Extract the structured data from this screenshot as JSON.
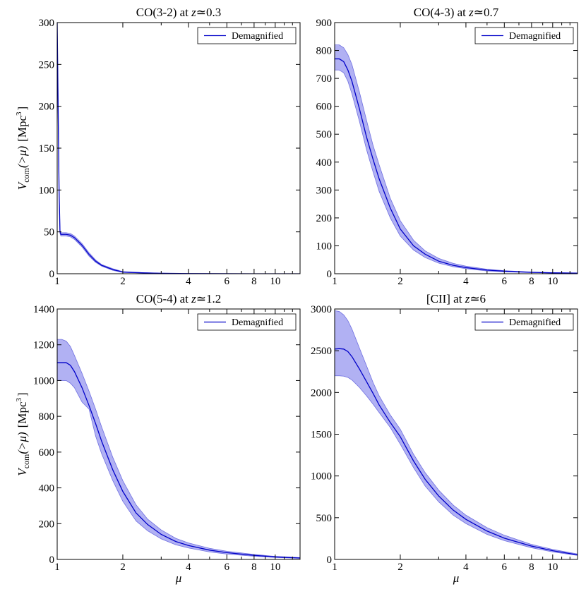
{
  "colors": {
    "line": "#0000c8",
    "band": "#9e9ef0",
    "band_edge": "#7070e0",
    "axis": "#000000"
  },
  "labels": {
    "ylabel_main": "V",
    "ylabel_sub": "com",
    "ylabel_arg": "(>μ)",
    "ylabel_unit": "[Mpc",
    "ylabel_unit_sup": "3",
    "ylabel_unit_close": "]",
    "xlabel": "μ"
  },
  "chart_data": [
    {
      "type": "area",
      "title_pre": "CO(3-2) at ",
      "title_var": "z",
      "title_post": "≃0.3",
      "legend": "Demagnified",
      "legend_position": "top-right",
      "xscale": "log",
      "xlim": [
        1,
        13
      ],
      "xticks": [
        1,
        2,
        4,
        6,
        8,
        10
      ],
      "xlabel": "",
      "ylim": [
        0,
        300
      ],
      "yticks": [
        0,
        50,
        100,
        150,
        200,
        250,
        300
      ],
      "ylabel": true,
      "x": [
        1.0,
        1.01,
        1.02,
        1.03,
        1.04,
        1.06,
        1.1,
        1.15,
        1.2,
        1.3,
        1.4,
        1.5,
        1.6,
        1.8,
        2.0,
        2.5,
        3.0,
        4.0,
        6.0,
        8.0,
        10.0,
        13.0
      ],
      "values": [
        300,
        200,
        100,
        50,
        47,
        47,
        47,
        46,
        43,
        34,
        23,
        15,
        10,
        5,
        2,
        1,
        0.5,
        0.2,
        0.1,
        0,
        0,
        0
      ],
      "upper": [
        300,
        205,
        103,
        52,
        49,
        49,
        49,
        48,
        45,
        36,
        25,
        16.5,
        11,
        6,
        2.5,
        1.2,
        0.6,
        0.3,
        0.1,
        0,
        0,
        0
      ],
      "lower": [
        300,
        195,
        97,
        48,
        45,
        45,
        45,
        44,
        41,
        32,
        21,
        13.5,
        9,
        4,
        1.5,
        0.8,
        0.4,
        0.1,
        0.05,
        0,
        0,
        0
      ]
    },
    {
      "type": "area",
      "title_pre": "CO(4-3) at ",
      "title_var": "z",
      "title_post": "≃0.7",
      "legend": "Demagnified",
      "legend_position": "top-right",
      "xscale": "log",
      "xlim": [
        1,
        13
      ],
      "xticks": [
        1,
        2,
        4,
        6,
        8,
        10
      ],
      "xlabel": "",
      "ylim": [
        0,
        900
      ],
      "yticks": [
        0,
        100,
        200,
        300,
        400,
        500,
        600,
        700,
        800,
        900
      ],
      "ylabel": false,
      "x": [
        1.0,
        1.05,
        1.1,
        1.15,
        1.2,
        1.3,
        1.4,
        1.5,
        1.6,
        1.8,
        2.0,
        2.3,
        2.6,
        3.0,
        3.5,
        4.0,
        5.0,
        6.0,
        8.0,
        10.0,
        13.0
      ],
      "values": [
        770,
        770,
        760,
        730,
        690,
        590,
        490,
        410,
        340,
        235,
        160,
        100,
        70,
        45,
        30,
        22,
        13,
        9,
        5,
        3,
        2
      ],
      "upper": [
        820,
        820,
        810,
        785,
        750,
        650,
        550,
        460,
        390,
        270,
        190,
        120,
        82,
        55,
        37,
        27,
        16,
        11,
        6,
        4,
        2.5
      ],
      "lower": [
        730,
        730,
        720,
        690,
        645,
        545,
        445,
        365,
        295,
        200,
        135,
        85,
        58,
        38,
        25,
        18,
        10,
        7,
        4,
        2.5,
        1.5
      ]
    },
    {
      "type": "area",
      "title_pre": "CO(5-4) at ",
      "title_var": "z",
      "title_post": "≃1.2",
      "legend": "Demagnified",
      "legend_position": "top-right",
      "xscale": "log",
      "xlim": [
        1,
        13
      ],
      "xticks": [
        1,
        2,
        4,
        6,
        8,
        10
      ],
      "xlabel": "μ",
      "ylim": [
        0,
        1400
      ],
      "yticks": [
        0,
        200,
        400,
        600,
        800,
        1000,
        1200,
        1400
      ],
      "ylabel": true,
      "x": [
        1.0,
        1.05,
        1.1,
        1.15,
        1.2,
        1.3,
        1.4,
        1.5,
        1.6,
        1.8,
        2.0,
        2.3,
        2.6,
        3.0,
        3.5,
        4.0,
        5.0,
        6.0,
        8.0,
        10.0,
        13.0
      ],
      "values": [
        1100,
        1100,
        1100,
        1085,
        1050,
        960,
        860,
        760,
        660,
        500,
        380,
        260,
        195,
        140,
        100,
        78,
        52,
        38,
        23,
        14,
        8
      ],
      "upper": [
        1230,
        1230,
        1220,
        1190,
        1140,
        1040,
        940,
        840,
        740,
        570,
        440,
        305,
        225,
        165,
        118,
        92,
        62,
        46,
        28,
        17,
        10
      ],
      "lower": [
        1000,
        1000,
        1000,
        985,
        960,
        880,
        840,
        690,
        590,
        440,
        325,
        215,
        160,
        115,
        82,
        64,
        42,
        30,
        18,
        11,
        6
      ]
    },
    {
      "type": "area",
      "title_pre": "[CII] at ",
      "title_var": "z",
      "title_post": "≃6",
      "legend": "Demagnified",
      "legend_position": "top-right",
      "xscale": "log",
      "xlim": [
        1,
        13
      ],
      "xticks": [
        1,
        2,
        4,
        6,
        8,
        10
      ],
      "xlabel": "μ",
      "ylim": [
        0,
        3000
      ],
      "yticks": [
        0,
        500,
        1000,
        1500,
        2000,
        2500,
        3000
      ],
      "ylabel": false,
      "x": [
        1.0,
        1.05,
        1.1,
        1.15,
        1.2,
        1.3,
        1.4,
        1.5,
        1.6,
        1.8,
        2.0,
        2.3,
        2.6,
        3.0,
        3.5,
        4.0,
        5.0,
        6.0,
        8.0,
        10.0,
        13.0
      ],
      "values": [
        2520,
        2525,
        2520,
        2490,
        2430,
        2280,
        2130,
        1990,
        1850,
        1640,
        1470,
        1180,
        960,
        760,
        590,
        480,
        340,
        255,
        160,
        105,
        55
      ],
      "upper": [
        2980,
        2970,
        2930,
        2860,
        2760,
        2530,
        2320,
        2120,
        1960,
        1730,
        1560,
        1260,
        1040,
        830,
        650,
        530,
        380,
        290,
        180,
        120,
        65
      ],
      "lower": [
        2200,
        2200,
        2195,
        2180,
        2150,
        2060,
        1960,
        1860,
        1760,
        1580,
        1380,
        1100,
        880,
        690,
        530,
        430,
        300,
        225,
        140,
        90,
        48
      ]
    }
  ]
}
